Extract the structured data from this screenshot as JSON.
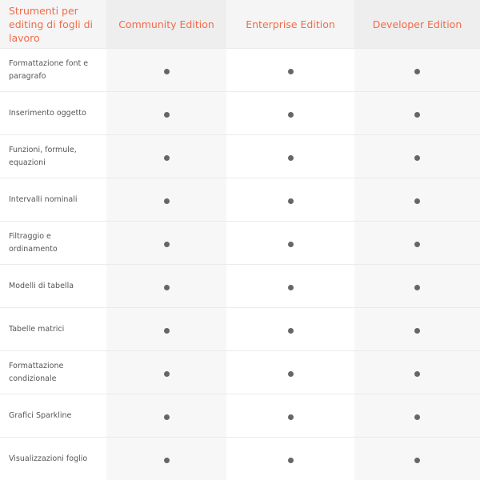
{
  "header": {
    "feature": "Strumenti per editing di fogli di lavoro",
    "editions": [
      "Community Edition",
      "Enterprise Edition",
      "Developer Edition"
    ]
  },
  "rows": [
    {
      "feature": "Formattazione font e paragrafo",
      "support": [
        true,
        true,
        true
      ]
    },
    {
      "feature": "Inserimento oggetto",
      "support": [
        true,
        true,
        true
      ]
    },
    {
      "feature": "Funzioni, formule, equazioni",
      "support": [
        true,
        true,
        true
      ]
    },
    {
      "feature": "Intervalli nominali",
      "support": [
        true,
        true,
        true
      ]
    },
    {
      "feature": "Filtraggio e ordinamento",
      "support": [
        true,
        true,
        true
      ]
    },
    {
      "feature": "Modelli di tabella",
      "support": [
        true,
        true,
        true
      ]
    },
    {
      "feature": "Tabelle matrici",
      "support": [
        true,
        true,
        true
      ]
    },
    {
      "feature": "Formattazione condizionale",
      "support": [
        true,
        true,
        true
      ]
    },
    {
      "feature": "Grafici Sparkline",
      "support": [
        true,
        true,
        true
      ]
    },
    {
      "feature": "Visualizzazioni foglio",
      "support": [
        true,
        true,
        true
      ]
    }
  ],
  "colors": {
    "accent": "#f26b4b",
    "dot": "#666666"
  },
  "icons": {
    "supported": "filled-dot-icon"
  }
}
